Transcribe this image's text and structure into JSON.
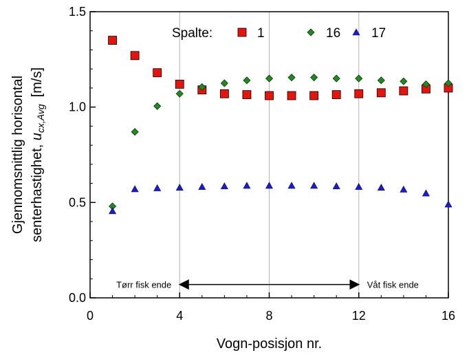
{
  "chart_data": {
    "type": "scatter",
    "title": "",
    "xlabel": "Vogn-posisjon nr.",
    "ylabel_line1": "Gjennomsnittlig horisontal",
    "ylabel_line2_prefix": "senterhastighet, ",
    "ylabel_symbol": "u",
    "ylabel_subscript": "cx,Avg",
    "ylabel_unit": "[m/s]",
    "xlim": [
      0,
      16
    ],
    "ylim": [
      0,
      1.5
    ],
    "x_ticks": [
      0,
      4,
      8,
      12,
      16
    ],
    "y_ticks": [
      0.0,
      0.5,
      1.0,
      1.5
    ],
    "x_tick_labels": [
      "0",
      "4",
      "8",
      "12",
      "16"
    ],
    "y_tick_labels": [
      "0.0",
      "0.5",
      "1.0",
      "1.5"
    ],
    "gridlines_x": [
      4,
      8,
      12
    ],
    "grid": "vertical",
    "legend": {
      "title": "Spalte:",
      "position": "top",
      "entries": [
        "1",
        "16",
        "17"
      ]
    },
    "x": [
      1,
      2,
      3,
      4,
      5,
      6,
      7,
      8,
      9,
      10,
      11,
      12,
      13,
      14,
      15,
      16
    ],
    "series": [
      {
        "name": "1",
        "marker": "square",
        "color": "#e8140c",
        "values": [
          1.35,
          1.27,
          1.18,
          1.12,
          1.09,
          1.07,
          1.065,
          1.06,
          1.06,
          1.06,
          1.065,
          1.07,
          1.075,
          1.085,
          1.095,
          1.1
        ]
      },
      {
        "name": "16",
        "marker": "diamond",
        "color": "#1f8a1f",
        "values": [
          0.48,
          0.87,
          1.005,
          1.07,
          1.105,
          1.125,
          1.14,
          1.15,
          1.155,
          1.155,
          1.15,
          1.15,
          1.14,
          1.135,
          1.12,
          1.125
        ]
      },
      {
        "name": "17",
        "marker": "triangle",
        "color": "#1a1ad8",
        "values": [
          0.455,
          0.57,
          0.575,
          0.578,
          0.582,
          0.585,
          0.588,
          0.588,
          0.588,
          0.588,
          0.585,
          0.582,
          0.578,
          0.568,
          0.548,
          0.49
        ]
      }
    ],
    "annotations": [
      {
        "text": "Tørr fisk ende",
        "x": 4,
        "y": 0.07,
        "anchor": "end"
      },
      {
        "text": "Våt fisk ende",
        "x": 12,
        "y": 0.07,
        "anchor": "start"
      }
    ],
    "arrow": {
      "x_from": 4,
      "x_to": 12,
      "y": 0.07
    }
  }
}
